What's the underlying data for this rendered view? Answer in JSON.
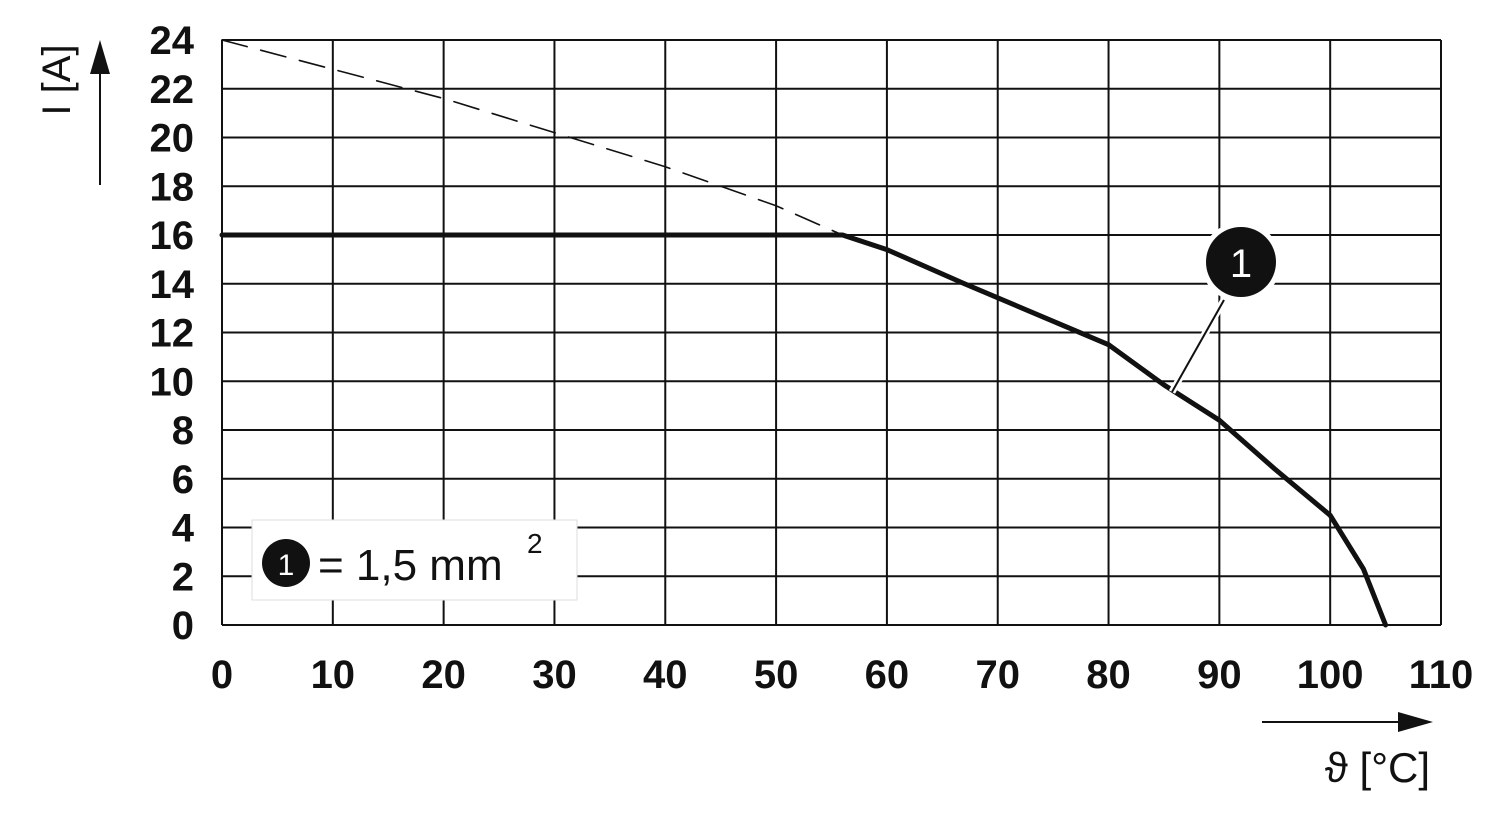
{
  "chart_data": {
    "type": "line",
    "x_label": "ϑ [°C]",
    "y_label": "I [A]",
    "xlim": [
      0,
      110
    ],
    "xticks": [
      0,
      10,
      20,
      30,
      40,
      50,
      60,
      70,
      80,
      90,
      100,
      110
    ],
    "ylim": [
      0,
      24
    ],
    "yticks": [
      0,
      2,
      4,
      6,
      8,
      10,
      12,
      14,
      16,
      18,
      20,
      22,
      24
    ],
    "grid": true,
    "series": [
      {
        "name": "1",
        "color": "#111111",
        "style": "solid",
        "x": [
          0,
          56,
          60,
          67,
          80,
          85,
          90,
          95,
          100,
          103,
          105
        ],
        "values": [
          16,
          16,
          15.4,
          14,
          11.5,
          9.85,
          8.4,
          6.4,
          4.5,
          2.3,
          0
        ]
      },
      {
        "color": "#111111",
        "style": "dashed",
        "x": [
          0,
          10,
          20,
          30,
          40,
          50,
          56
        ],
        "values": [
          24,
          22.8,
          21.6,
          20.2,
          18.8,
          17.2,
          16
        ]
      }
    ],
    "annotation": "1",
    "legend_text": "= 1,5 mm",
    "legend_superscript": "2"
  }
}
